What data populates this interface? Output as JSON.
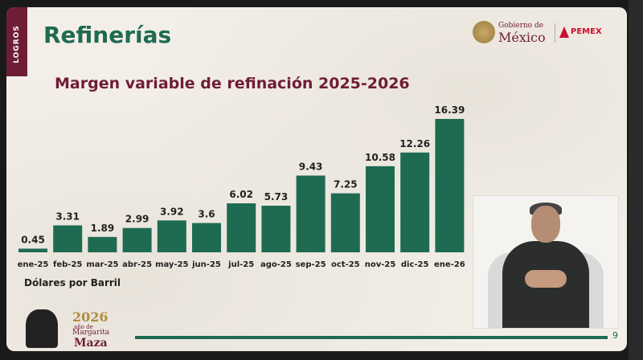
{
  "side_tab": "LOGROS",
  "title": "Refinerías",
  "logos": {
    "gob_line1": "Gobierno de",
    "gob_line2": "México",
    "pemex": "PEMEX"
  },
  "unit_label": "Dólares por Barril",
  "footer": {
    "year": "2026",
    "ano_de": "año de",
    "name1": "Margarita",
    "name2": "Maza",
    "page_number": "9"
  },
  "colors": {
    "bar": "#1e6b52",
    "title": "#1e6b52",
    "subtitle": "#6f1d36"
  },
  "chart_data": {
    "type": "bar",
    "title": "Margen variable de refinación 2025-2026",
    "categories": [
      "ene-25",
      "feb-25",
      "mar-25",
      "abr-25",
      "may-25",
      "jun-25",
      "jul-25",
      "ago-25",
      "sep-25",
      "oct-25",
      "nov-25",
      "dic-25",
      "ene-26"
    ],
    "values": [
      0.45,
      3.31,
      1.89,
      2.99,
      3.92,
      3.6,
      6.02,
      5.73,
      9.43,
      7.25,
      10.58,
      12.26,
      16.39
    ],
    "value_labels": [
      "0.45",
      "3.31",
      "1.89",
      "2.99",
      "3.92",
      "3.6",
      "6.02",
      "5.73",
      "9.43",
      "7.25",
      "10.58",
      "12.26",
      "16.39"
    ],
    "ylabel": "Dólares por Barril",
    "grid": false,
    "legend": "none"
  }
}
